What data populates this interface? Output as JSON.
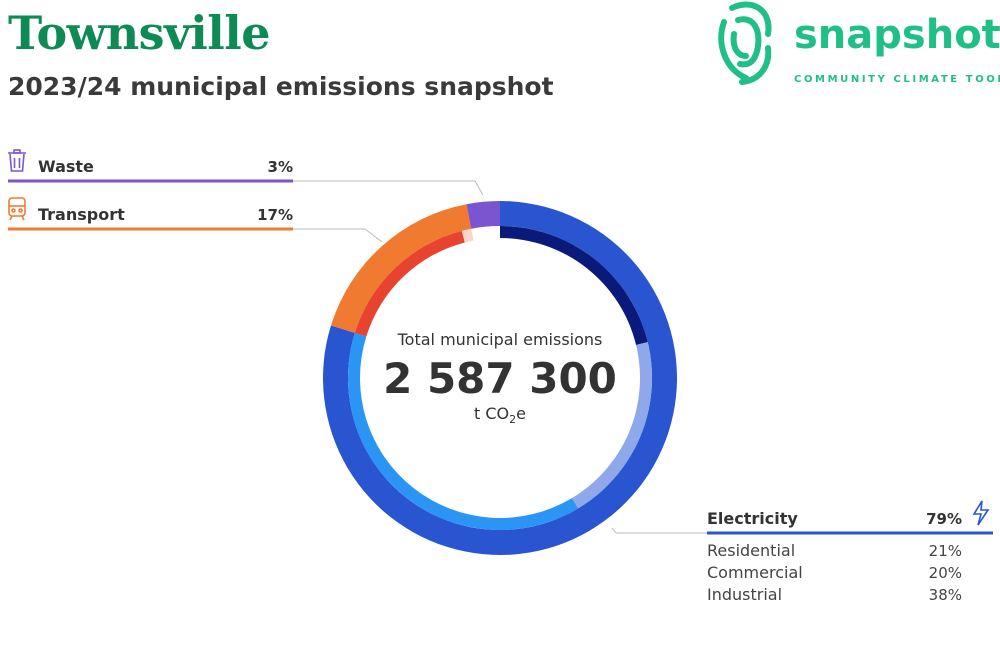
{
  "header": {
    "title": "Townsville",
    "subtitle": "2023/24 municipal emissions snapshot"
  },
  "logo": {
    "wordmark": "snapshot",
    "tagline": "COMMUNITY CLIMATE TOOL",
    "icon": "fingerprint-icon"
  },
  "chart_data": {
    "type": "pie",
    "center": {
      "label": "Total municipal emissions",
      "value": "2 587 300",
      "unit_prefix": "t CO",
      "unit_sub": "2",
      "unit_suffix": "e"
    },
    "sectors": [
      {
        "name": "Electricity",
        "percent": 79,
        "percent_label": "79%",
        "color": "#2a55d0",
        "icon": "lightning-icon",
        "subsectors": [
          {
            "name": "Residential",
            "percent": 21,
            "percent_label": "21%",
            "color": "#0b1a7a"
          },
          {
            "name": "Commercial",
            "percent": 20,
            "percent_label": "20%",
            "color": "#8fa8ea"
          },
          {
            "name": "Industrial",
            "percent": 38,
            "percent_label": "38%",
            "color": "#2a95f5"
          }
        ]
      },
      {
        "name": "Transport",
        "percent": 17,
        "percent_label": "17%",
        "color": "#f07a30",
        "icon": "train-icon",
        "subsectors": [
          {
            "name": "",
            "percent": 16,
            "color": "#e8432e"
          },
          {
            "name": "",
            "percent": 1,
            "color": "#f9d6cc"
          }
        ]
      },
      {
        "name": "Waste",
        "percent": 3,
        "percent_label": "3%",
        "color": "#7a55cf",
        "icon": "trash-icon",
        "subsectors": []
      }
    ]
  }
}
